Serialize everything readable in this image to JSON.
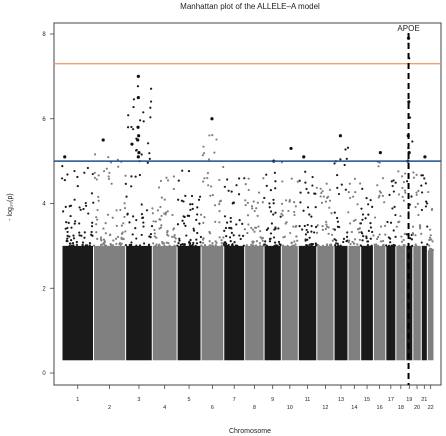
{
  "chart_data": {
    "type": "scatter",
    "title": "Manhattan plot of the ALLELE–A model",
    "xlabel": "Chromosome",
    "ylabel": "- log₁₀(p)",
    "ylim": [
      0,
      8
    ],
    "yticks": [
      "0",
      "2",
      "4",
      "6",
      "8"
    ],
    "chromosomes": [
      {
        "label": "1",
        "start": 0.0,
        "end": 10.4,
        "peak": 5.1,
        "color": "#1a1a1a"
      },
      {
        "label": "2",
        "start": 10.4,
        "end": 21.0,
        "peak": 5.5,
        "color": "#808080"
      },
      {
        "label": "3",
        "start": 21.0,
        "end": 29.8,
        "peak": 7.0,
        "color": "#1a1a1a"
      },
      {
        "label": "4",
        "start": 29.8,
        "end": 38.0,
        "peak": 4.9,
        "color": "#808080"
      },
      {
        "label": "5",
        "start": 38.0,
        "end": 45.9,
        "peak": 5.0,
        "color": "#1a1a1a"
      },
      {
        "label": "6",
        "start": 45.9,
        "end": 53.4,
        "peak": 6.0,
        "color": "#808080"
      },
      {
        "label": "7",
        "start": 53.4,
        "end": 60.3,
        "peak": 4.8,
        "color": "#1a1a1a"
      },
      {
        "label": "8",
        "start": 60.3,
        "end": 66.7,
        "peak": 4.8,
        "color": "#808080"
      },
      {
        "label": "9",
        "start": 66.7,
        "end": 72.4,
        "peak": 5.0,
        "color": "#1a1a1a"
      },
      {
        "label": "10",
        "start": 72.4,
        "end": 78.0,
        "peak": 5.3,
        "color": "#808080"
      },
      {
        "label": "11",
        "start": 78.0,
        "end": 84.1,
        "peak": 5.1,
        "color": "#1a1a1a"
      },
      {
        "label": "12",
        "start": 84.1,
        "end": 89.8,
        "peak": 4.7,
        "color": "#808080"
      },
      {
        "label": "13",
        "start": 89.8,
        "end": 94.4,
        "peak": 5.6,
        "color": "#1a1a1a"
      },
      {
        "label": "14",
        "start": 94.4,
        "end": 98.6,
        "peak": 4.8,
        "color": "#808080"
      },
      {
        "label": "15",
        "start": 98.6,
        "end": 102.8,
        "peak": 4.7,
        "color": "#1a1a1a"
      },
      {
        "label": "16",
        "start": 102.8,
        "end": 106.9,
        "peak": 5.2,
        "color": "#808080"
      },
      {
        "label": "17",
        "start": 106.9,
        "end": 110.2,
        "peak": 4.9,
        "color": "#1a1a1a"
      },
      {
        "label": "18",
        "start": 110.2,
        "end": 113.5,
        "peak": 5.2,
        "color": "#808080"
      },
      {
        "label": "19",
        "start": 113.5,
        "end": 115.8,
        "peak": 8.0,
        "color": "#1a1a1a"
      },
      {
        "label": "20",
        "start": 115.8,
        "end": 118.6,
        "peak": 5.0,
        "color": "#808080"
      },
      {
        "label": "21",
        "start": 118.6,
        "end": 120.6,
        "peak": 5.1,
        "color": "#1a1a1a"
      },
      {
        "label": "22",
        "start": 120.6,
        "end": 122.8,
        "peak": 4.5,
        "color": "#808080"
      }
    ],
    "x_range": [
      0,
      122.8
    ],
    "hits": [
      {
        "chr": "1",
        "x": 0.9,
        "y": 5.1
      },
      {
        "chr": "2",
        "x": 13.6,
        "y": 5.5
      },
      {
        "chr": "3",
        "x": 25.2,
        "y": 7.0
      },
      {
        "chr": "3",
        "x": 25.2,
        "y": 6.5
      },
      {
        "chr": "3",
        "x": 25.1,
        "y": 5.8
      },
      {
        "chr": "3",
        "x": 25.3,
        "y": 5.6
      },
      {
        "chr": "3",
        "x": 25.0,
        "y": 5.5
      },
      {
        "chr": "3",
        "x": 25.4,
        "y": 5.2
      },
      {
        "chr": "3",
        "x": 25.2,
        "y": 5.1
      },
      {
        "chr": "3",
        "x": 23.1,
        "y": 5.4
      },
      {
        "chr": "6",
        "x": 49.5,
        "y": 6.0
      },
      {
        "chr": "9",
        "x": 69.9,
        "y": 5.0
      },
      {
        "chr": "10",
        "x": 75.6,
        "y": 5.3
      },
      {
        "chr": "11",
        "x": 79.8,
        "y": 5.1
      },
      {
        "chr": "13",
        "x": 91.9,
        "y": 5.6
      },
      {
        "chr": "16",
        "x": 105.1,
        "y": 5.2
      },
      {
        "chr": "19",
        "x": 114.4,
        "y": 7.9
      },
      {
        "chr": "19",
        "x": 114.5,
        "y": 6.4
      },
      {
        "chr": "19",
        "x": 114.3,
        "y": 5.6
      },
      {
        "chr": "19",
        "x": 114.6,
        "y": 5.2
      },
      {
        "chr": "19",
        "x": 114.2,
        "y": 5.0
      },
      {
        "chr": "21",
        "x": 119.8,
        "y": 5.1
      }
    ],
    "threshold_lines": [
      {
        "value": 7.3,
        "color": "#f0a070"
      },
      {
        "value": 5.0,
        "color": "#1f4e8c"
      }
    ],
    "annotation": {
      "label": "APOE",
      "x": 114.4
    },
    "point_floor": 0.3,
    "grid": false,
    "legend": "none"
  }
}
